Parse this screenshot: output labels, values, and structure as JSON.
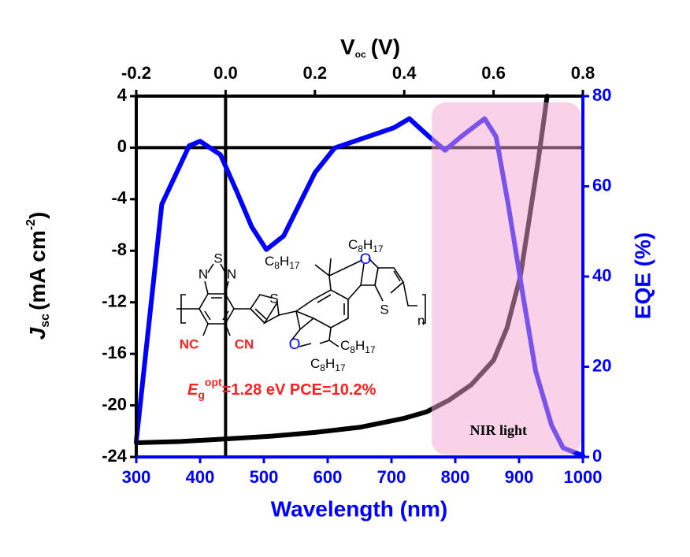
{
  "chart_data": {
    "type": "line",
    "x_label": "Wavelength (nm)",
    "x2_label": [
      "V",
      "oc",
      "(V)"
    ],
    "y_label": [
      "J",
      "sc",
      "(mA cm",
      "-2",
      ")"
    ],
    "y2_label": "EQE (%)",
    "xlim": [
      300,
      1000
    ],
    "xticks": [
      300,
      400,
      500,
      600,
      700,
      800,
      900,
      1000
    ],
    "x2lim": [
      -0.2,
      0.8
    ],
    "x2ticks": [
      -0.2,
      {
        "value": 0,
        "label": "0.0"
      },
      0.2,
      0.4,
      0.6,
      0.8
    ],
    "ylim": [
      -24,
      4
    ],
    "yticks": [
      4,
      0,
      -4,
      -8,
      -12,
      -16,
      -20,
      -24
    ],
    "y2lim": [
      0,
      80
    ],
    "y2ticks": [
      0,
      20,
      40,
      60,
      80
    ],
    "series": [
      {
        "color": "#000000",
        "xaxis": "x2",
        "x": [
          -0.2,
          -0.1,
          0,
          0.1,
          0.2,
          0.3,
          0.4,
          0.45,
          0.5,
          0.55,
          0.6,
          0.63,
          0.66,
          0.68,
          0.7,
          0.71,
          0.72
        ],
        "values": [
          -22.9,
          -22.8,
          -22.6,
          -22.4,
          -22.1,
          -21.7,
          -21.0,
          -20.5,
          -19.6,
          -18.4,
          -16.5,
          -14.0,
          -10.0,
          -5.5,
          -1.0,
          1.5,
          4.0
        ]
      },
      {
        "color": "#0000ff",
        "axis": "y2",
        "x": [
          300,
          340,
          383,
          400,
          432,
          457,
          481,
          504,
          531,
          580,
          611,
          704,
          728,
          759,
          784,
          809,
          846,
          864,
          883,
          907,
          926,
          951,
          969,
          1000
        ],
        "values": [
          3.5,
          56,
          69,
          70,
          67,
          59,
          51,
          46,
          49,
          63,
          68.5,
          73,
          75,
          71,
          68,
          71,
          75,
          71,
          56,
          35,
          19,
          7,
          2,
          0.3
        ]
      }
    ],
    "shaded_region": {
      "x": [
        763,
        997
      ],
      "y2": [
        0,
        78.6
      ],
      "label": "NIR light",
      "color": "#f4a6d6"
    },
    "annotation": [
      "E",
      "g",
      "opt",
      "=1.28 eV PCE=10.2%"
    ],
    "structure": {
      "S1": "S",
      "N1": "N",
      "N2": "N",
      "NC": "NC",
      "CN": "CN",
      "S2": "S",
      "S3": "S",
      "O1": "O",
      "O2": "O",
      "n": "n",
      "alkyl": [
        [
          "C",
          "8",
          "H",
          "17"
        ],
        [
          "C",
          "8",
          "H",
          "17"
        ],
        [
          "C",
          "8",
          "H",
          "17"
        ],
        [
          "C",
          "8",
          "H",
          "17"
        ]
      ]
    }
  }
}
